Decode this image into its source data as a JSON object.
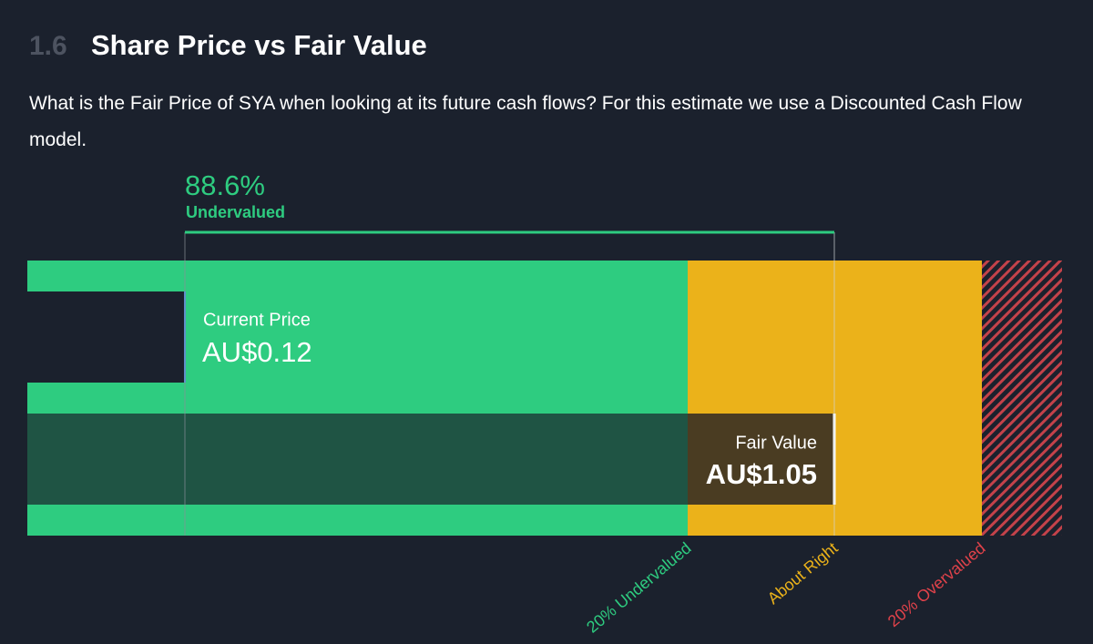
{
  "section": {
    "number": "1.6",
    "title": "Share Price vs Fair Value"
  },
  "description": "What is the Fair Price of SYA when looking at its future cash flows? For this estimate we use a Discounted Cash Flow model.",
  "valuation": {
    "discount": "88.6%",
    "status": "Undervalued",
    "current_price": {
      "label": "Current Price",
      "value": "AU$0.12"
    },
    "fair_value": {
      "label": "Fair Value",
      "value": "AU$1.05"
    },
    "zones": [
      "20% Undervalued",
      "About Right",
      "20% Overvalued"
    ]
  }
}
